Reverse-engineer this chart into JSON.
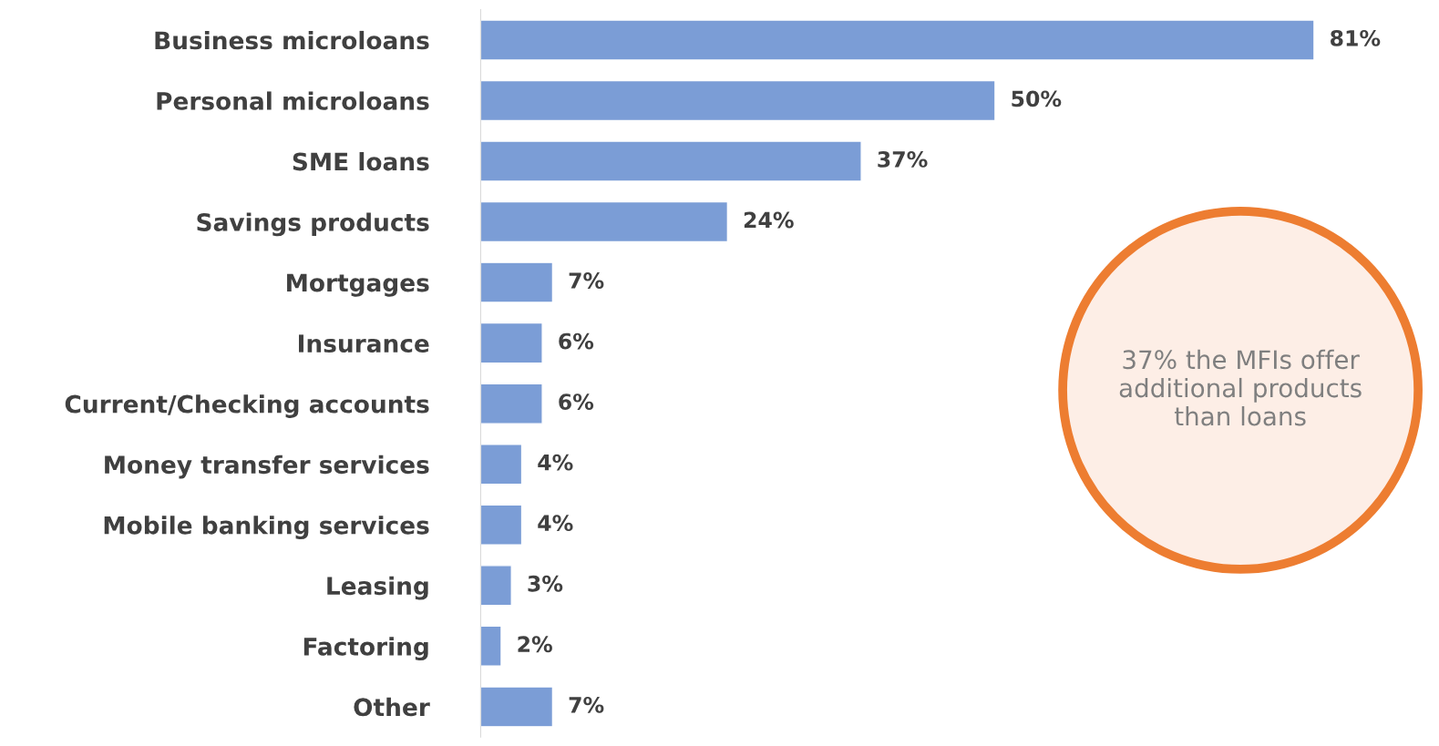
{
  "chart_data": {
    "type": "bar",
    "orientation": "horizontal",
    "categories": [
      "Business microloans",
      "Personal microloans",
      "SME loans",
      "Savings products",
      "Mortgages",
      "Insurance",
      "Current/Checking accounts",
      "Money transfer services",
      "Mobile banking services",
      "Leasing",
      "Factoring",
      "Other"
    ],
    "values": [
      81,
      50,
      37,
      24,
      7,
      6,
      6,
      4,
      4,
      3,
      2,
      7
    ],
    "value_labels": [
      "81%",
      "50%",
      "37%",
      "24%",
      "7%",
      "6%",
      "6%",
      "4%",
      "4%",
      "3%",
      "2%",
      "7%"
    ],
    "color": "#7b9dd6",
    "tick_labels": "y",
    "grid": false,
    "legend": false,
    "annotations": [
      "37% the MFIs offer additional products than loans"
    ]
  }
}
